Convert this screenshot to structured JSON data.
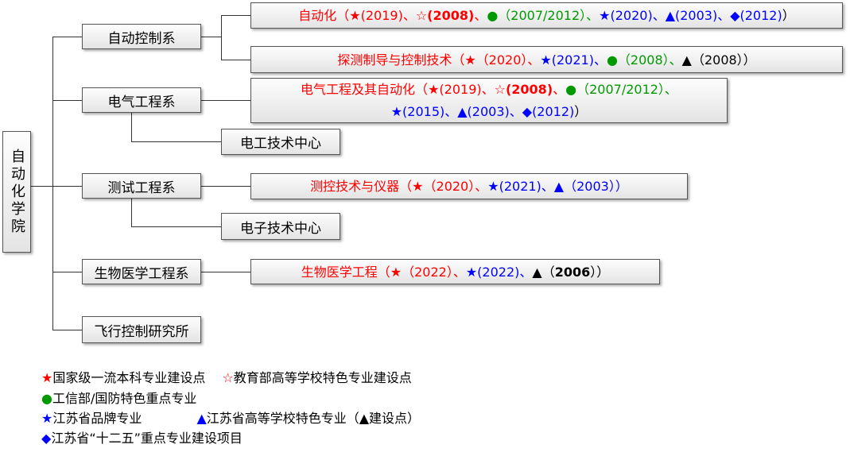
{
  "root": "自动化学院",
  "colors": {
    "red": "#ff0000",
    "green": "#009900",
    "blue": "#0000ff",
    "black": "#000000"
  },
  "departments": [
    "自动控制系",
    "电气工程系",
    "测试工程系",
    "生物医学工程系",
    "飞行控制研究所"
  ],
  "centers": [
    "电工技术中心",
    "电子技术中心"
  ],
  "majors": [
    {
      "segments": [
        {
          "t": "自动化（",
          "c": "red"
        },
        {
          "t": "★(2019)、",
          "c": "red"
        },
        {
          "t": "☆",
          "c": "red"
        },
        {
          "t": "(2008)",
          "c": "red",
          "b": true
        },
        {
          "t": "、",
          "c": "red"
        },
        {
          "t": "●（2007/2012）、",
          "c": "green"
        },
        {
          "t": "★(2020)、▲(2003)、◆(2012)",
          "c": "blue"
        },
        {
          "t": "）",
          "c": "black"
        }
      ]
    },
    {
      "segments": [
        {
          "t": "探测制导与控制技术（",
          "c": "red"
        },
        {
          "t": "★（2020）、",
          "c": "red"
        },
        {
          "t": "★(2021)、",
          "c": "blue"
        },
        {
          "t": "●（2008）、",
          "c": "green"
        },
        {
          "t": "▲（2008））",
          "c": "black"
        }
      ]
    },
    {
      "segments": [
        {
          "t": "电气工程及其自动化（",
          "c": "red"
        },
        {
          "t": "★(2019)、☆",
          "c": "red"
        },
        {
          "t": "(2008)",
          "c": "red",
          "b": true
        },
        {
          "t": "、",
          "c": "red"
        },
        {
          "t": "●（2007/2012）、",
          "c": "green"
        },
        {
          "t": "★(2015)、▲(2003)、◆(2012)",
          "c": "blue"
        },
        {
          "t": "）",
          "c": "black"
        }
      ]
    },
    {
      "segments": [
        {
          "t": "测控技术与仪器（",
          "c": "red"
        },
        {
          "t": "★（2020）、",
          "c": "red"
        },
        {
          "t": "★(2021)、▲（2003））",
          "c": "blue"
        }
      ]
    },
    {
      "segments": [
        {
          "t": "生物医学工程（",
          "c": "red"
        },
        {
          "t": "★（2022）、",
          "c": "red"
        },
        {
          "t": "★(2022)、",
          "c": "blue"
        },
        {
          "t": "▲（",
          "c": "black"
        },
        {
          "t": "2006",
          "c": "black",
          "b": true
        },
        {
          "t": "））",
          "c": "black"
        }
      ]
    }
  ],
  "legend": [
    [
      {
        "t": "★",
        "c": "red"
      },
      {
        "t": "国家级一流本科专业建设点",
        "c": "black"
      },
      {
        "t": "　 ☆",
        "c": "red"
      },
      {
        "t": "教育部高等学校特色专业建设点",
        "c": "black"
      }
    ],
    [
      {
        "t": "●",
        "c": "green"
      },
      {
        "t": "工信部/国防特色重点专业",
        "c": "black"
      }
    ],
    [
      {
        "t": "★",
        "c": "blue"
      },
      {
        "t": "江苏省品牌专业　　　　 ",
        "c": "black"
      },
      {
        "t": "▲",
        "c": "blue"
      },
      {
        "t": "江苏省高等学校特色专业（▲建设点）",
        "c": "black"
      }
    ],
    [
      {
        "t": "◆",
        "c": "blue"
      },
      {
        "t": "江苏省“十二五”重点专业建设项目",
        "c": "black"
      }
    ]
  ]
}
